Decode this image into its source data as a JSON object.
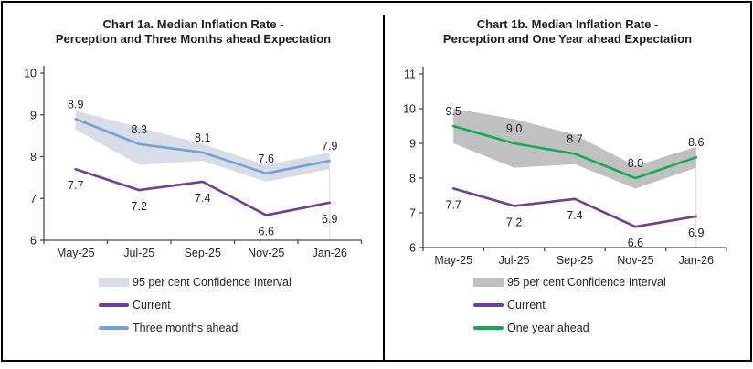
{
  "figure": {
    "kind": "report-figure-two-panel",
    "border_color": "#000000",
    "background": "#ffffff"
  },
  "chart_data": [
    {
      "type": "line",
      "title": "Chart 1a. Median Inflation Rate - Perception and Three Months ahead Expectation",
      "title_lines": [
        "Chart 1a. Median Inflation Rate -",
        "Perception and Three Months ahead Expectation"
      ],
      "categories": [
        "May-25",
        "Jul-25",
        "Sep-25",
        "Nov-25",
        "Jan-26"
      ],
      "xlabel": "",
      "ylabel": "",
      "ylim": [
        6,
        10
      ],
      "yticks": [
        6,
        7,
        8,
        9,
        10
      ],
      "grid": false,
      "legend_position": "bottom-left",
      "band": {
        "name": "95 per cent Confidence Interval",
        "color": "#d8dce6",
        "upper": [
          9.1,
          8.7,
          8.3,
          7.8,
          8.1
        ],
        "lower": [
          8.65,
          7.8,
          7.9,
          7.4,
          7.7
        ]
      },
      "series": [
        {
          "name": "Current",
          "color": "#6f3d9b",
          "label_position": "below",
          "values": [
            7.7,
            7.2,
            7.4,
            6.6,
            6.9
          ]
        },
        {
          "name": "Three months ahead",
          "color": "#71a3d7",
          "label_position": "above",
          "values": [
            8.9,
            8.3,
            8.1,
            7.6,
            7.9
          ]
        }
      ]
    },
    {
      "type": "line",
      "title": "Chart 1b. Median Inflation Rate - Perception and One Year ahead Expectation",
      "title_lines": [
        "Chart 1b. Median Inflation Rate -",
        "Perception and One Year ahead Expectation"
      ],
      "categories": [
        "May-25",
        "Jul-25",
        "Sep-25",
        "Nov-25",
        "Jan-26"
      ],
      "xlabel": "",
      "ylabel": "",
      "ylim": [
        6,
        11
      ],
      "yticks": [
        6,
        7,
        8,
        9,
        10,
        11
      ],
      "grid": false,
      "legend_position": "bottom-left",
      "band": {
        "name": "95 per cent Confidence Interval",
        "color": "#c0c0c0",
        "upper": [
          10.0,
          9.7,
          9.25,
          8.35,
          8.9
        ],
        "lower": [
          9.0,
          8.3,
          8.4,
          7.7,
          8.3
        ]
      },
      "series": [
        {
          "name": "Current",
          "color": "#6f3d9b",
          "label_position": "below",
          "values": [
            7.7,
            7.2,
            7.4,
            6.6,
            6.9
          ]
        },
        {
          "name": "One year ahead",
          "color": "#0fae53",
          "label_position": "above",
          "values": [
            9.5,
            9.0,
            8.7,
            8.0,
            8.6
          ]
        }
      ]
    }
  ]
}
